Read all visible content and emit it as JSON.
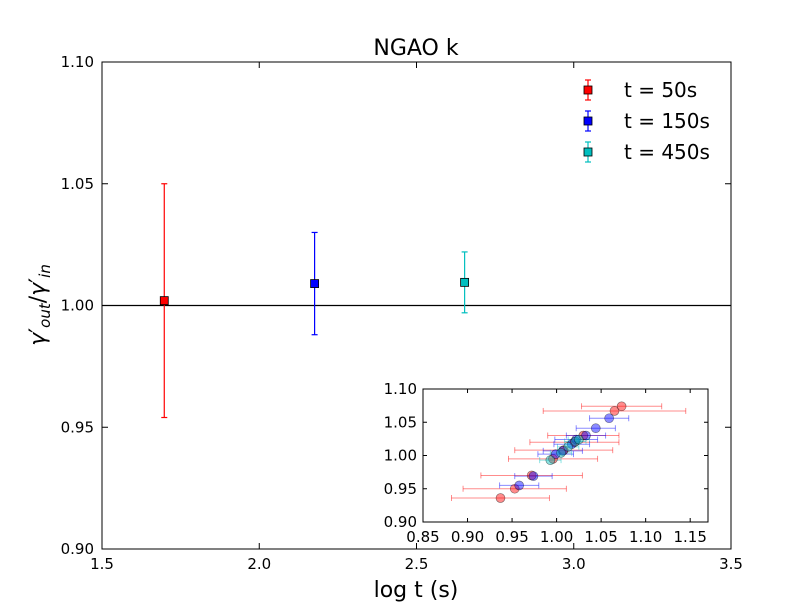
{
  "chart_data": [
    {
      "type": "scatter",
      "title": "NGAO k",
      "xlabel": "log t (s)",
      "ylabel_parts": {
        "gamma": "γ",
        "prime": "′",
        "out": "out",
        "slash": "/",
        "in": "in"
      },
      "xlim": [
        1.5,
        3.5
      ],
      "ylim": [
        0.9,
        1.1
      ],
      "x_ticks": [
        "1.5",
        "2.0",
        "2.5",
        "3.0",
        "3.5"
      ],
      "y_ticks": [
        "0.90",
        "0.95",
        "1.00",
        "1.05",
        "1.10"
      ],
      "reference_line_y": 1.0,
      "legend_position": "top-right",
      "series": [
        {
          "name": "t = 50s",
          "color": "#ff0000",
          "x": [
            1.698
          ],
          "y": [
            1.002
          ],
          "yerr": [
            0.048
          ]
        },
        {
          "name": "t = 150s",
          "color": "#0000ff",
          "x": [
            2.176
          ],
          "y": [
            1.009
          ],
          "yerr": [
            0.021
          ]
        },
        {
          "name": "t = 450s",
          "color": "#00bfbf",
          "x": [
            2.653
          ],
          "y": [
            1.0095
          ],
          "yerr": [
            0.0125
          ]
        }
      ]
    },
    {
      "type": "scatter",
      "title": "",
      "xlim": [
        0.85,
        1.17
      ],
      "ylim": [
        0.9,
        1.1
      ],
      "x_ticks": [
        "0.85",
        "0.90",
        "0.95",
        "1.00",
        "1.05",
        "1.10",
        "1.15"
      ],
      "y_ticks": [
        "0.90",
        "0.95",
        "1.00",
        "1.05",
        "1.10"
      ],
      "series": [
        {
          "color": "#ff0000",
          "x": [
            0.937,
            0.953,
            0.972,
            0.996,
            1.008,
            1.02,
            1.03,
            1.065,
            1.073
          ],
          "y": [
            0.936,
            0.95,
            0.97,
            0.995,
            1.008,
            1.02,
            1.03,
            1.067,
            1.074
          ],
          "xerr": [
            0.055,
            0.058,
            0.057,
            0.05,
            0.055,
            0.05,
            0.04,
            0.08,
            0.045
          ]
        },
        {
          "color": "#0000ff",
          "x": [
            0.958,
            0.974,
            0.999,
            1.007,
            1.017,
            1.022,
            1.033,
            1.044,
            1.059
          ],
          "y": [
            0.955,
            0.969,
            1.002,
            1.007,
            1.017,
            1.024,
            1.03,
            1.041,
            1.056
          ],
          "xerr": [
            0.022,
            0.021,
            0.02,
            0.022,
            0.02,
            0.024,
            0.022,
            0.022,
            0.022
          ]
        },
        {
          "color": "#00bfbf",
          "x": [
            0.993,
            1.005,
            1.013,
            1.021,
            1.025
          ],
          "y": [
            0.993,
            1.004,
            1.013,
            1.021,
            1.024
          ],
          "xerr": [
            0.012,
            0.012,
            0.012,
            0.012,
            0.012
          ]
        }
      ]
    }
  ]
}
